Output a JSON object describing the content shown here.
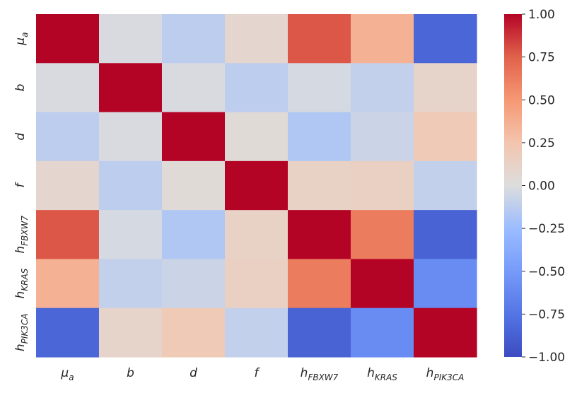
{
  "chart_data": {
    "type": "heatmap",
    "title": "",
    "xlabel": "",
    "ylabel": "",
    "colormap": "coolwarm",
    "vmin": -1.0,
    "vmax": 1.0,
    "grid": false,
    "legend": "colorbar-right",
    "row_labels": [
      {
        "base": "μ",
        "sub": "a"
      },
      {
        "base": "b",
        "sub": ""
      },
      {
        "base": "d",
        "sub": ""
      },
      {
        "base": "f",
        "sub": ""
      },
      {
        "base": "h",
        "sub": "FBXW7"
      },
      {
        "base": "h",
        "sub": "KRAS"
      },
      {
        "base": "h",
        "sub": "PIK3CA"
      }
    ],
    "col_labels": [
      {
        "base": "μ",
        "sub": "a"
      },
      {
        "base": "b",
        "sub": ""
      },
      {
        "base": "d",
        "sub": ""
      },
      {
        "base": "f",
        "sub": ""
      },
      {
        "base": "h",
        "sub": "FBXW7"
      },
      {
        "base": "h",
        "sub": "KRAS"
      },
      {
        "base": "h",
        "sub": "PIK3CA"
      }
    ],
    "values": [
      [
        1.0,
        -0.02,
        -0.12,
        0.08,
        0.78,
        0.36,
        -0.84
      ],
      [
        -0.02,
        1.0,
        -0.02,
        -0.12,
        -0.03,
        -0.1,
        0.1
      ],
      [
        -0.12,
        -0.02,
        1.0,
        0.03,
        -0.17,
        -0.07,
        0.2
      ],
      [
        0.08,
        -0.12,
        0.03,
        1.0,
        0.13,
        0.14,
        -0.1
      ],
      [
        0.78,
        -0.03,
        -0.17,
        0.13,
        1.0,
        0.63,
        -0.86
      ],
      [
        0.36,
        -0.1,
        -0.07,
        0.14,
        0.63,
        1.0,
        -0.6
      ],
      [
        -0.84,
        0.1,
        0.2,
        -0.1,
        -0.86,
        -0.6,
        1.0
      ]
    ],
    "colorbar_ticks": [
      "1.00",
      "0.75",
      "0.50",
      "0.25",
      "0.00",
      "−0.25",
      "−0.50",
      "−0.75",
      "−1.00"
    ],
    "colorbar_tick_values": [
      1.0,
      0.75,
      0.5,
      0.25,
      0.0,
      -0.25,
      -0.5,
      -0.75,
      -1.0
    ]
  }
}
